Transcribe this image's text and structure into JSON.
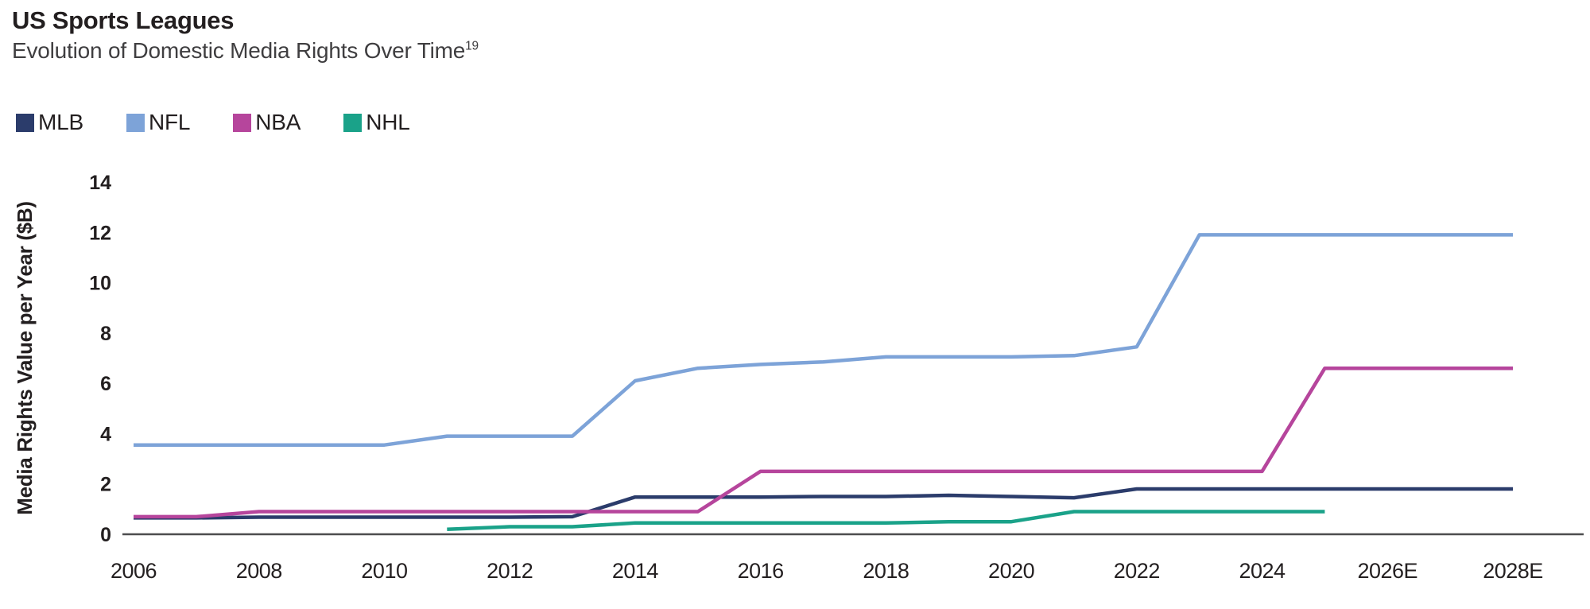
{
  "header": {
    "title": "US Sports Leagues",
    "subtitle": "Evolution of Domestic Media Rights Over Time",
    "footnote_marker": "19"
  },
  "colors": {
    "mlb": "#2b3c6b",
    "nfl": "#7da3d8",
    "nba": "#b6459c",
    "nhl": "#1aa289",
    "axis_line": "#4d4d4f",
    "text": "#231f20"
  },
  "chart_data": {
    "type": "line",
    "title": "US Sports Leagues",
    "subtitle": "Evolution of Domestic Media Rights Over Time",
    "ylabel": "Media Rights Value per Year ($B)",
    "xlabel": "",
    "units": "USD billions per year",
    "grid": false,
    "legend_position": "top-left",
    "ylim": [
      0,
      14
    ],
    "yticks": [
      0,
      2,
      4,
      6,
      8,
      10,
      12,
      14
    ],
    "xlim": [
      2006,
      2028
    ],
    "xticks": [
      {
        "year": 2006,
        "label": "2006"
      },
      {
        "year": 2008,
        "label": "2008"
      },
      {
        "year": 2010,
        "label": "2010"
      },
      {
        "year": 2012,
        "label": "2012"
      },
      {
        "year": 2014,
        "label": "2014"
      },
      {
        "year": 2016,
        "label": "2016"
      },
      {
        "year": 2018,
        "label": "2018"
      },
      {
        "year": 2020,
        "label": "2020"
      },
      {
        "year": 2022,
        "label": "2022"
      },
      {
        "year": 2024,
        "label": "2024"
      },
      {
        "year": 2026,
        "label": "2026E"
      },
      {
        "year": 2028,
        "label": "2028E"
      }
    ],
    "series": [
      {
        "name": "MLB",
        "color": "#2b3c6b",
        "points": [
          [
            2006,
            0.65
          ],
          [
            2007,
            0.65
          ],
          [
            2008,
            0.68
          ],
          [
            2009,
            0.68
          ],
          [
            2010,
            0.68
          ],
          [
            2011,
            0.68
          ],
          [
            2012,
            0.68
          ],
          [
            2013,
            0.7
          ],
          [
            2014,
            1.48
          ],
          [
            2015,
            1.48
          ],
          [
            2016,
            1.48
          ],
          [
            2017,
            1.5
          ],
          [
            2018,
            1.5
          ],
          [
            2019,
            1.55
          ],
          [
            2020,
            1.5
          ],
          [
            2021,
            1.45
          ],
          [
            2022,
            1.8
          ],
          [
            2023,
            1.8
          ],
          [
            2024,
            1.8
          ],
          [
            2025,
            1.8
          ],
          [
            2026,
            1.8
          ],
          [
            2027,
            1.8
          ],
          [
            2028,
            1.8
          ]
        ]
      },
      {
        "name": "NFL",
        "color": "#7da3d8",
        "points": [
          [
            2006,
            3.55
          ],
          [
            2007,
            3.55
          ],
          [
            2008,
            3.55
          ],
          [
            2009,
            3.55
          ],
          [
            2010,
            3.55
          ],
          [
            2011,
            3.9
          ],
          [
            2012,
            3.9
          ],
          [
            2013,
            3.9
          ],
          [
            2014,
            6.1
          ],
          [
            2015,
            6.6
          ],
          [
            2016,
            6.75
          ],
          [
            2017,
            6.85
          ],
          [
            2018,
            7.05
          ],
          [
            2019,
            7.05
          ],
          [
            2020,
            7.05
          ],
          [
            2021,
            7.1
          ],
          [
            2022,
            7.45
          ],
          [
            2023,
            11.9
          ],
          [
            2024,
            11.9
          ],
          [
            2025,
            11.9
          ],
          [
            2026,
            11.9
          ],
          [
            2027,
            11.9
          ],
          [
            2028,
            11.9
          ]
        ]
      },
      {
        "name": "NBA",
        "color": "#b6459c",
        "points": [
          [
            2006,
            0.7
          ],
          [
            2007,
            0.7
          ],
          [
            2008,
            0.9
          ],
          [
            2009,
            0.9
          ],
          [
            2010,
            0.9
          ],
          [
            2011,
            0.9
          ],
          [
            2012,
            0.9
          ],
          [
            2013,
            0.9
          ],
          [
            2014,
            0.9
          ],
          [
            2015,
            0.9
          ],
          [
            2016,
            2.5
          ],
          [
            2017,
            2.5
          ],
          [
            2018,
            2.5
          ],
          [
            2019,
            2.5
          ],
          [
            2020,
            2.5
          ],
          [
            2021,
            2.5
          ],
          [
            2022,
            2.5
          ],
          [
            2023,
            2.5
          ],
          [
            2024,
            2.5
          ],
          [
            2025,
            6.6
          ],
          [
            2026,
            6.6
          ],
          [
            2027,
            6.6
          ],
          [
            2028,
            6.6
          ]
        ]
      },
      {
        "name": "NHL",
        "color": "#1aa289",
        "points": [
          [
            2011,
            0.2
          ],
          [
            2012,
            0.3
          ],
          [
            2013,
            0.3
          ],
          [
            2014,
            0.45
          ],
          [
            2015,
            0.45
          ],
          [
            2016,
            0.45
          ],
          [
            2017,
            0.45
          ],
          [
            2018,
            0.45
          ],
          [
            2019,
            0.5
          ],
          [
            2020,
            0.5
          ],
          [
            2021,
            0.9
          ],
          [
            2022,
            0.9
          ],
          [
            2023,
            0.9
          ],
          [
            2024,
            0.9
          ],
          [
            2025,
            0.9
          ]
        ]
      }
    ]
  }
}
